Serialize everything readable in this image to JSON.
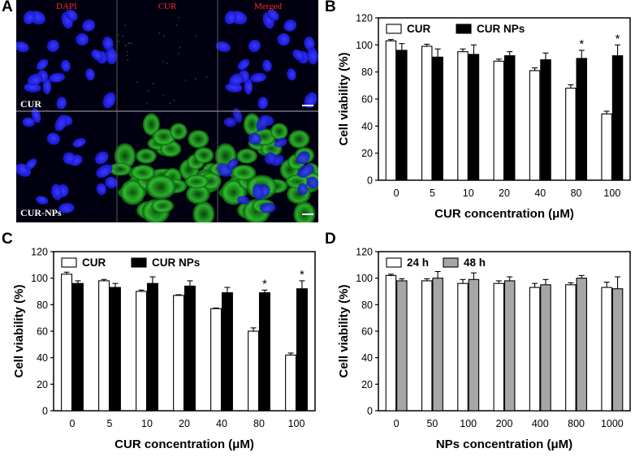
{
  "micrograph": {
    "letter": "A",
    "columns": [
      "DAPI",
      "CUR",
      "Merged"
    ],
    "rows": [
      "CUR",
      "CUR-NPs"
    ],
    "label_color": "#ff2a2a"
  },
  "panel_letters": [
    "B",
    "C",
    "D"
  ],
  "colors": {
    "open_bar": "#ffffff",
    "filled_bar": "#000000",
    "gray_bar": "#a6a6a6"
  },
  "chart_data": [
    {
      "type": "bar",
      "panel": "B",
      "categories": [
        "0",
        "5",
        "10",
        "20",
        "40",
        "80",
        "100"
      ],
      "xlabel": "CUR concentration (μM)",
      "ylabel": "Cell viability (%)",
      "ylim": [
        0,
        120
      ],
      "yticks": [
        "0",
        "20",
        "40",
        "60",
        "80",
        "100",
        "120"
      ],
      "legend": "top-left",
      "series": [
        {
          "name": "CUR",
          "values": [
            103,
            99,
            95,
            88,
            81,
            68,
            49
          ],
          "errors": [
            1,
            1.5,
            2,
            1.5,
            2,
            2.5,
            2
          ]
        },
        {
          "name": "CUR NPs",
          "values": [
            96,
            91,
            93,
            92,
            89,
            90,
            92
          ],
          "errors": [
            5,
            6,
            7,
            3,
            5,
            6,
            8
          ]
        }
      ],
      "annotations": [
        {
          "category": "80",
          "series": "CUR NPs",
          "text": "*"
        },
        {
          "category": "100",
          "series": "CUR NPs",
          "text": "*"
        }
      ]
    },
    {
      "type": "bar",
      "panel": "C",
      "categories": [
        "0",
        "5",
        "10",
        "20",
        "40",
        "80",
        "100"
      ],
      "xlabel": "CUR concentration (μM)",
      "ylabel": "Cell viability (%)",
      "ylim": [
        0,
        120
      ],
      "yticks": [
        "0",
        "20",
        "40",
        "60",
        "80",
        "100",
        "120"
      ],
      "legend": "top-left",
      "series": [
        {
          "name": "CUR",
          "values": [
            103,
            98,
            90,
            87,
            77,
            60,
            42
          ],
          "errors": [
            1.5,
            1,
            1,
            0.5,
            0.5,
            2.5,
            1.5
          ]
        },
        {
          "name": "CUR NPs",
          "values": [
            96,
            93,
            96,
            94,
            89,
            89,
            92
          ],
          "errors": [
            2,
            3,
            5,
            4,
            4,
            2,
            6
          ]
        }
      ],
      "annotations": [
        {
          "category": "80",
          "series": "CUR NPs",
          "text": "*"
        },
        {
          "category": "100",
          "series": "CUR NPs",
          "text": "*"
        }
      ]
    },
    {
      "type": "bar",
      "panel": "D",
      "categories": [
        "0",
        "50",
        "100",
        "200",
        "400",
        "800",
        "1000"
      ],
      "xlabel": "NPs concentration (μM)",
      "ylabel": "Cell viability (%)",
      "ylim": [
        0,
        120
      ],
      "yticks": [
        "0",
        "20",
        "40",
        "60",
        "80",
        "100",
        "120"
      ],
      "legend": "top-left",
      "series": [
        {
          "name": "24 h",
          "values": [
            102,
            98,
            96,
            96,
            93,
            95,
            93
          ],
          "errors": [
            1,
            1.5,
            3,
            2,
            3,
            1.5,
            4
          ]
        },
        {
          "name": "48 h",
          "values": [
            98,
            100,
            99,
            98,
            95,
            100,
            92
          ],
          "errors": [
            1.5,
            5,
            5,
            3,
            4,
            2,
            9
          ]
        }
      ],
      "annotations": []
    }
  ]
}
